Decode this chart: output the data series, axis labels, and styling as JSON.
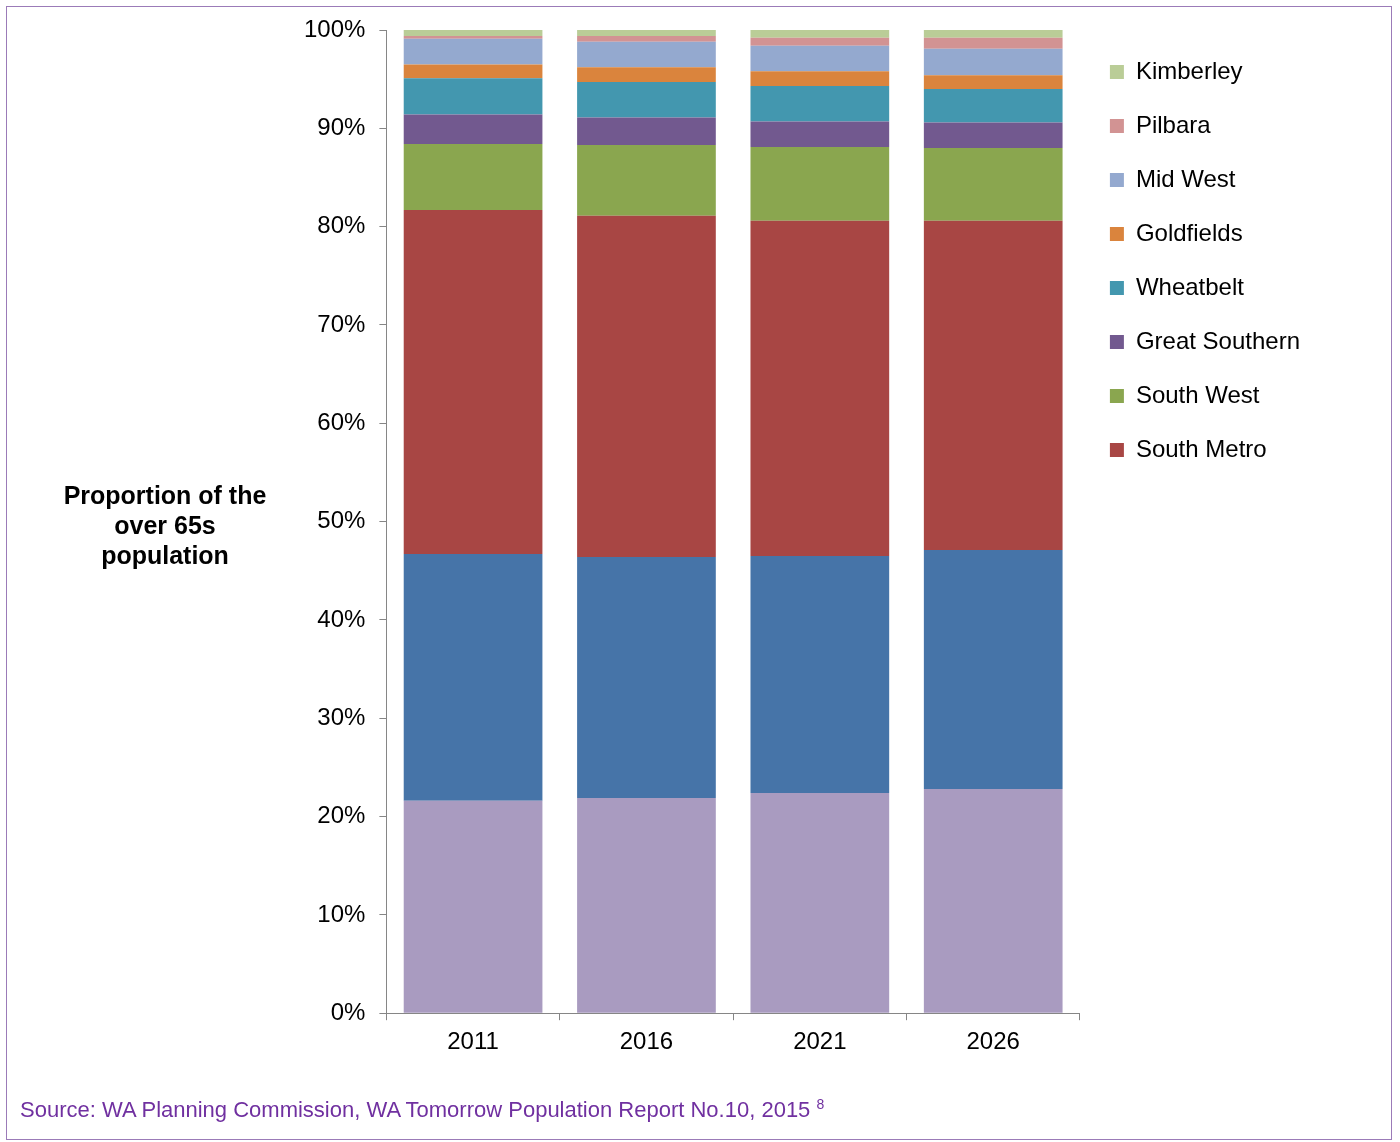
{
  "chart_data": {
    "type": "bar",
    "stacked": true,
    "ylabel": "Proportion of the over 65s population",
    "categories": [
      "2011",
      "2016",
      "2021",
      "2026"
    ],
    "series": [
      {
        "color": "#a99bc0",
        "values": [
          21.6,
          21.9,
          22.4,
          22.8
        ]
      },
      {
        "color": "#4674a8",
        "values": [
          25.1,
          24.5,
          24.1,
          24.3
        ]
      },
      {
        "name": "South Metro",
        "color": "#a84644",
        "values": [
          35.0,
          34.7,
          34.1,
          33.5
        ]
      },
      {
        "name": "South West",
        "color": "#8aa64f",
        "values": [
          6.7,
          7.2,
          7.5,
          7.4
        ]
      },
      {
        "name": "Great Southern",
        "color": "#72598f",
        "values": [
          3.0,
          2.8,
          2.6,
          2.6
        ]
      },
      {
        "name": "Wheatbelt",
        "color": "#4397af",
        "values": [
          3.7,
          3.6,
          3.6,
          3.4
        ]
      },
      {
        "name": "Goldfields",
        "color": "#da843d",
        "values": [
          1.4,
          1.5,
          1.5,
          1.4
        ]
      },
      {
        "name": "Mid West",
        "color": "#94a9cf",
        "values": [
          2.6,
          2.6,
          2.6,
          2.7
        ]
      },
      {
        "name": "Pilbara",
        "color": "#d29393",
        "values": [
          0.3,
          0.6,
          0.8,
          1.1
        ]
      },
      {
        "name": "Kimberley",
        "color": "#bacd97",
        "values": [
          0.6,
          0.6,
          0.8,
          0.8
        ]
      }
    ],
    "ylim": [
      0,
      100
    ],
    "yticks": [
      {
        "value": 0,
        "label": "0%"
      },
      {
        "value": 10,
        "label": "10%"
      },
      {
        "value": 20,
        "label": "20%"
      },
      {
        "value": 30,
        "label": "30%"
      },
      {
        "value": 40,
        "label": "40%"
      },
      {
        "value": 50,
        "label": "50%"
      },
      {
        "value": 60,
        "label": "60%"
      },
      {
        "value": 70,
        "label": "70%"
      },
      {
        "value": 80,
        "label": "80%"
      },
      {
        "value": 90,
        "label": "90%"
      },
      {
        "value": 100,
        "label": "100%"
      }
    ],
    "grid": false,
    "legend": "right",
    "annotations": [
      "Source: WA Planning Commission, WA Tomorrow Population Report No.10, 2015 $^{8}$"
    ]
  }
}
